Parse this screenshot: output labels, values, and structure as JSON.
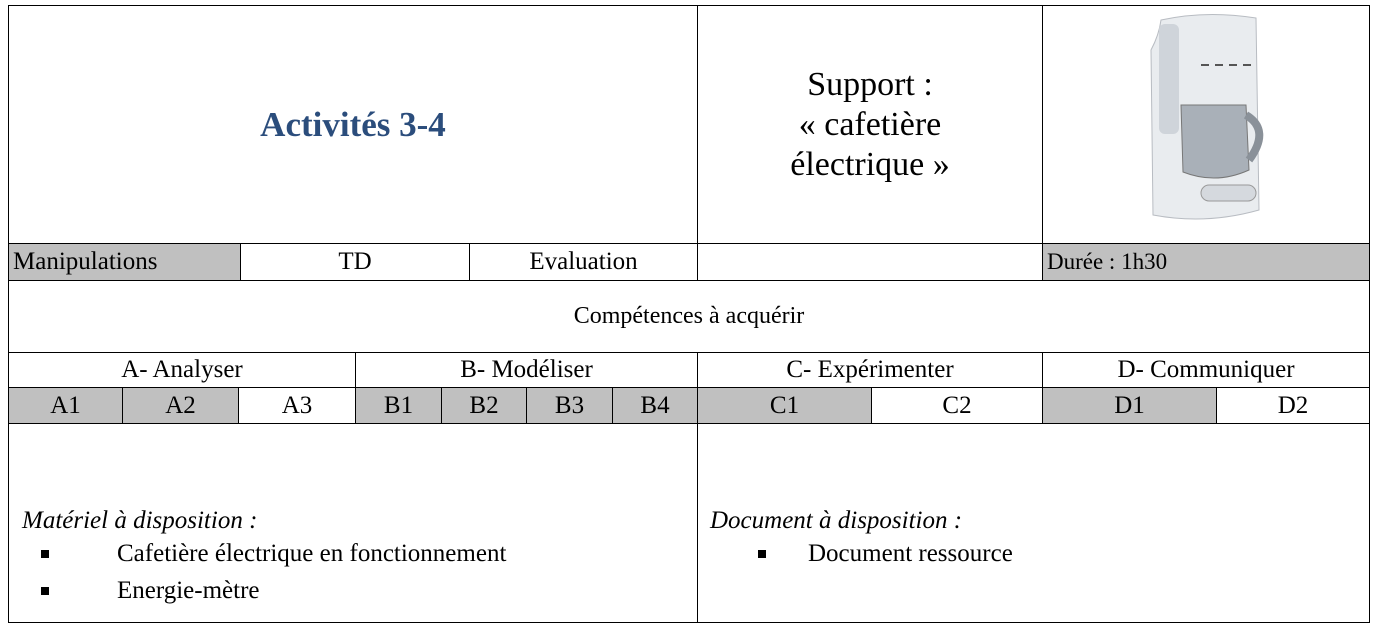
{
  "header": {
    "title": "Activités 3-4",
    "support": [
      "Support :",
      "« cafetière",
      "électrique »"
    ]
  },
  "modes": [
    "Manipulations",
    "TD",
    "Evaluation"
  ],
  "duree": "Durée : 1h30",
  "competences": {
    "title": "Compétences à acquérir",
    "groups": [
      {
        "label": "A- Analyser",
        "items": [
          "A1",
          "A2",
          "A3"
        ]
      },
      {
        "label": "B- Modéliser",
        "items": [
          "B1",
          "B2",
          "B3",
          "B4"
        ]
      },
      {
        "label": "C- Expérimenter",
        "items": [
          "C1",
          "C2"
        ]
      },
      {
        "label": "D- Communiquer",
        "items": [
          "D1",
          "D2"
        ]
      }
    ]
  },
  "materiel": {
    "heading": "Matériel à disposition :",
    "items": [
      "Cafetière électrique en fonctionnement",
      "Energie-mètre"
    ]
  },
  "document": {
    "heading": "Document à disposition :",
    "items": [
      "Document ressource"
    ]
  }
}
